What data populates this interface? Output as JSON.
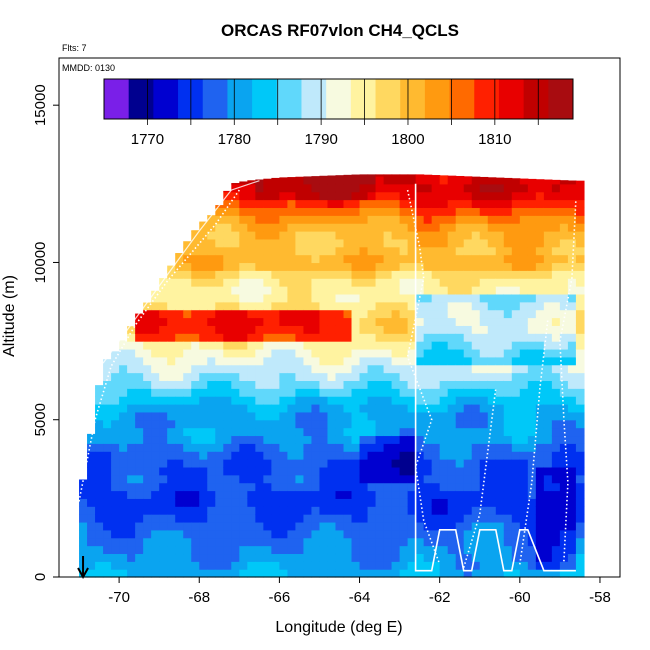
{
  "chart_data": {
    "type": "heatmap",
    "title": "ORCAS RF07vlon CH4_QCLS",
    "notes": {
      "flights": "Flts: 7",
      "mmdd": "MMDD: 0130"
    },
    "xlabel": "Longitude (deg E)",
    "ylabel": "Altitude (m)",
    "xlim": [
      -71.5,
      -57.5
    ],
    "ylim": [
      0,
      16500
    ],
    "xticks": [
      -70,
      -68,
      -66,
      -64,
      -62,
      -60,
      -58
    ],
    "yticks": [
      0,
      5000,
      10000,
      15000
    ],
    "colorbar": {
      "range": [
        1765,
        1819
      ],
      "ticks": [
        1770,
        1780,
        1790,
        1800,
        1810
      ],
      "tick_labels": [
        "1770",
        "1780",
        "1790",
        "1800",
        "1810"
      ],
      "colors": [
        "#7a1fe8",
        "#00008f",
        "#0000d0",
        "#0030f0",
        "#1f63f0",
        "#0aa4f0",
        "#00c8f8",
        "#60d8fb",
        "#bfe9fb",
        "#f7fae0",
        "#fff3a0",
        "#ffd860",
        "#ffba30",
        "#ff9a10",
        "#ff6a00",
        "#ff2000",
        "#e80000",
        "#c00000",
        "#a80c10"
      ]
    },
    "column_top_altitude": [
      [
        -71.0,
        2500
      ],
      [
        -70.8,
        3700
      ],
      [
        -70.6,
        5400
      ],
      [
        -70.4,
        6800
      ],
      [
        -70.0,
        7300
      ],
      [
        -69.6,
        8200
      ],
      [
        -69.2,
        8900
      ],
      [
        -68.8,
        9700
      ],
      [
        -68.4,
        10500
      ],
      [
        -68.0,
        11200
      ],
      [
        -67.6,
        11600
      ],
      [
        -67.2,
        12500
      ],
      [
        -66.8,
        12600
      ],
      [
        -66.0,
        12700
      ],
      [
        -64.0,
        12800
      ],
      [
        -62.5,
        12800
      ],
      [
        -58.6,
        12600
      ]
    ],
    "profile": [
      [
        0,
        1782
      ],
      [
        500,
        1780
      ],
      [
        1000,
        1779
      ],
      [
        1500,
        1778
      ],
      [
        2000,
        1776
      ],
      [
        2500,
        1775
      ],
      [
        3000,
        1777
      ],
      [
        3500,
        1776
      ],
      [
        4000,
        1778
      ],
      [
        4500,
        1781
      ],
      [
        5000,
        1780
      ],
      [
        5500,
        1782
      ],
      [
        6000,
        1786
      ],
      [
        6500,
        1789
      ],
      [
        7000,
        1792
      ],
      [
        7500,
        1795
      ],
      [
        8000,
        1798
      ],
      [
        8500,
        1797
      ],
      [
        9000,
        1794
      ],
      [
        9500,
        1796
      ],
      [
        10000,
        1802
      ],
      [
        10500,
        1799
      ],
      [
        11000,
        1800
      ],
      [
        11500,
        1804
      ],
      [
        12000,
        1810
      ],
      [
        12500,
        1813
      ]
    ],
    "anomalies": [
      {
        "x": [
          -69.5,
          -64.2
        ],
        "y": [
          7500,
          8500
        ],
        "delta": 13
      },
      {
        "x": [
          -64.0,
          -62.5
        ],
        "y": [
          3000,
          4500
        ],
        "delta": -5
      },
      {
        "x": [
          -62.5,
          -58.5
        ],
        "y": [
          6800,
          9000
        ],
        "delta": -7
      },
      {
        "x": [
          -62.6,
          -59.0
        ],
        "y": [
          10500,
          12500
        ],
        "delta": 2
      },
      {
        "x": [
          -59.5,
          -58.5
        ],
        "y": [
          300,
          3500
        ],
        "delta": -5
      },
      {
        "x": [
          -66.5,
          -63.5
        ],
        "y": [
          12000,
          12800
        ],
        "delta": 4
      }
    ],
    "flight_track_right": [
      [
        -62.6,
        12500
      ],
      [
        -62.6,
        200
      ],
      [
        -62.2,
        200
      ],
      [
        -62.0,
        1500
      ],
      [
        -61.6,
        1500
      ],
      [
        -61.4,
        200
      ],
      [
        -61.2,
        200
      ],
      [
        -61.0,
        1500
      ],
      [
        -60.6,
        1500
      ],
      [
        -60.4,
        200
      ],
      [
        -60.2,
        200
      ],
      [
        -60.0,
        1500
      ],
      [
        -59.8,
        1500
      ],
      [
        -59.4,
        200
      ],
      [
        -58.6,
        200
      ]
    ],
    "flight_track_left": [
      [
        -70.4,
        6800
      ],
      [
        -69.6,
        8200
      ],
      [
        -68.8,
        9600
      ],
      [
        -68.0,
        11000
      ],
      [
        -67.2,
        12300
      ],
      [
        -66.5,
        12600
      ]
    ],
    "dotted_tracks": [
      [
        [
          -71.0,
          2400
        ],
        [
          -70.6,
          5000
        ],
        [
          -70.2,
          6700
        ],
        [
          -69.6,
          8000
        ],
        [
          -68.8,
          9400
        ],
        [
          -67.6,
          11200
        ],
        [
          -67.0,
          12300
        ]
      ],
      [
        [
          -62.8,
          12300
        ],
        [
          -62.5,
          10500
        ],
        [
          -62.4,
          9500
        ],
        [
          -62.8,
          7000
        ],
        [
          -62.2,
          5000
        ],
        [
          -62.6,
          3500
        ],
        [
          -62.4,
          1800
        ],
        [
          -62.0,
          400
        ]
      ],
      [
        [
          -61.4,
          300
        ],
        [
          -61.0,
          2000
        ],
        [
          -60.8,
          4000
        ],
        [
          -60.6,
          6000
        ]
      ],
      [
        [
          -60.0,
          400
        ],
        [
          -59.7,
          3000
        ],
        [
          -59.5,
          6000
        ],
        [
          -59.3,
          8200
        ]
      ],
      [
        [
          -58.9,
          500
        ],
        [
          -58.8,
          3000
        ],
        [
          -58.9,
          5000
        ],
        [
          -59.0,
          7500
        ],
        [
          -58.7,
          9500
        ],
        [
          -58.6,
          12000
        ]
      ]
    ],
    "arrow": {
      "x": -70.9,
      "direction": "down"
    }
  }
}
